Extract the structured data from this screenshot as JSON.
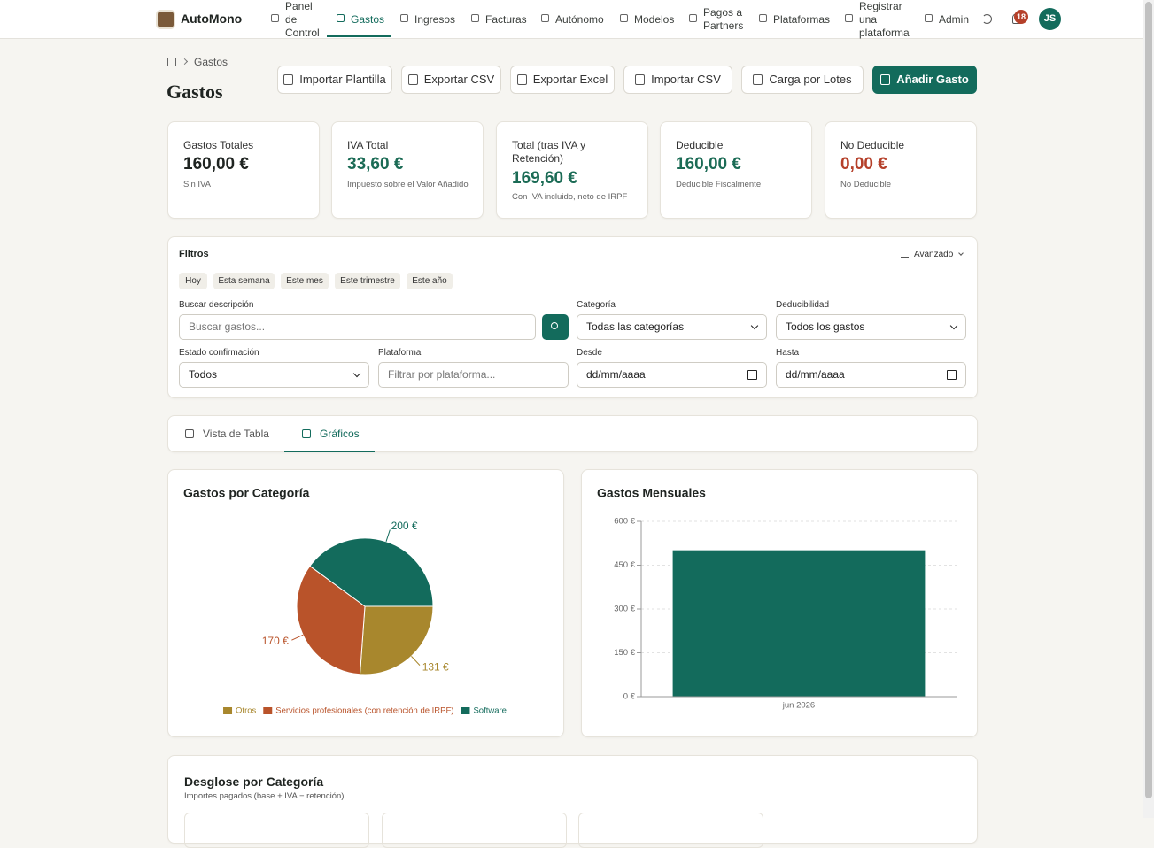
{
  "nav": {
    "brand": "AutoMono",
    "items": [
      "Panel de Control",
      "Gastos",
      "Ingresos",
      "Facturas",
      "Autónomo",
      "Modelos",
      "Pagos a Partners",
      "Plataformas",
      "Registrar una plataforma",
      "Admin"
    ],
    "notifications": "18",
    "avatar": "JS"
  },
  "breadcrumb": [
    "Gastos"
  ],
  "header": {
    "title": "Gastos",
    "actions": [
      "Importar Plantilla",
      "Exportar CSV",
      "Exportar Excel",
      "Importar CSV",
      "Carga por Lotes",
      "Añadir Gasto"
    ]
  },
  "summary": [
    {
      "label": "Gastos Totales",
      "value": "160,00 €",
      "note": "Sin IVA"
    },
    {
      "label": "IVA Total",
      "value": "33,60 €",
      "note": "Impuesto sobre el Valor Añadido"
    },
    {
      "label": "Total (tras IVA y Retención)",
      "value": "169,60 €",
      "note": "Con IVA incluido, neto de IRPF"
    },
    {
      "label": "Deducible",
      "value": "160,00 €",
      "note": "Deducible Fiscalmente"
    },
    {
      "label": "No Deducible",
      "value": "0,00 €",
      "note": "No Deducible"
    }
  ],
  "filters": {
    "title": "Filtros",
    "advanced": "Avanzado",
    "quick": [
      "Hoy",
      "Esta semana",
      "Este mes",
      "Este trimestre",
      "Este año"
    ],
    "fields": [
      {
        "label": "Buscar descripción",
        "placeholder": "Buscar gastos..."
      },
      {
        "label": "Categoría",
        "value": "Todas las categorías"
      },
      {
        "label": "Deducibilidad",
        "value": "Todos los gastos"
      },
      {
        "label": "Estado confirmación",
        "value": "Todos"
      },
      {
        "label": "Plataforma",
        "placeholder": "Filtrar por plataforma..."
      },
      {
        "label": "Desde",
        "placeholder": "dd/mm/aaaa"
      },
      {
        "label": "Hasta",
        "placeholder": "dd/mm/aaaa"
      }
    ]
  },
  "tabs": [
    "Vista de Tabla",
    "Gráficos"
  ],
  "chart_data": [
    {
      "type": "pie",
      "title": "Gastos por Categoría",
      "categories": [
        "Otros",
        "Servicios profesionales (con retención de IRPF)",
        "Software"
      ],
      "values": [
        131,
        170,
        200
      ],
      "value_labels": [
        "131 €",
        "170 €",
        "200 €"
      ],
      "colors": [
        "#a8872d",
        "#b9532a",
        "#136b5c"
      ],
      "legend": "bottom"
    },
    {
      "type": "bar",
      "title": "Gastos Mensuales",
      "categories": [
        "jun 2026"
      ],
      "values": [
        501
      ],
      "color": "#136b5c",
      "ylim": [
        0,
        600
      ],
      "yticks": [
        {
          "value": 0,
          "label": "0 €"
        },
        {
          "value": 150,
          "label": "150 €"
        },
        {
          "value": 300,
          "label": "300 €"
        },
        {
          "value": 450,
          "label": "450 €"
        },
        {
          "value": 600,
          "label": "600 €"
        }
      ],
      "grid": true
    }
  ],
  "breakdown": {
    "title": "Desglose por Categoría",
    "subtitle": "Importes pagados (base + IVA − retención)"
  }
}
